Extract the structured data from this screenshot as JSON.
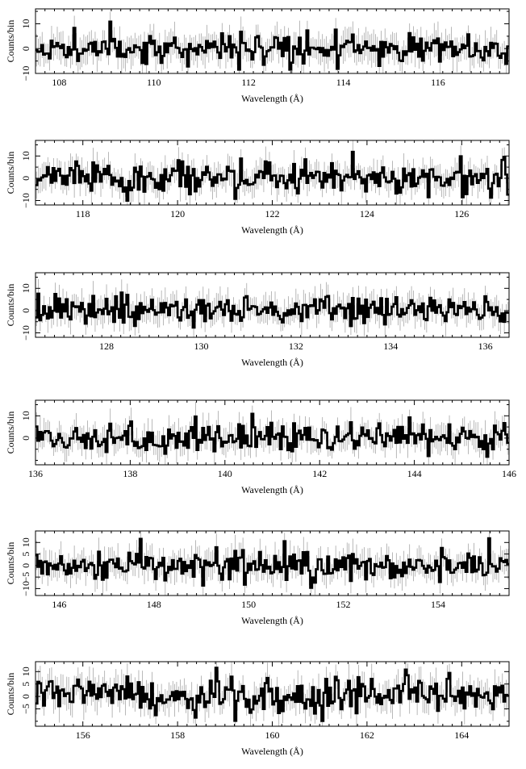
{
  "chart_data": [
    {
      "type": "line",
      "xlabel": "Wavelength (Å)",
      "ylabel": "Counts/bin",
      "xlim": [
        107.5,
        117.5
      ],
      "ylim": [
        -10,
        16
      ],
      "xticks": [
        108,
        110,
        112,
        114,
        116
      ],
      "xtick_labels": [
        "108",
        "110",
        "112",
        "114",
        "116"
      ],
      "yticks": [
        -10,
        0,
        10
      ],
      "ytick_labels": [
        "−10",
        "0",
        "10"
      ],
      "grid": false,
      "seed": 11
    },
    {
      "type": "line",
      "xlabel": "Wavelength (Å)",
      "ylabel": "Counts/bin",
      "xlim": [
        117,
        127
      ],
      "ylim": [
        -12,
        17
      ],
      "xticks": [
        118,
        120,
        122,
        124,
        126
      ],
      "xtick_labels": [
        "118",
        "120",
        "122",
        "124",
        "126"
      ],
      "yticks": [
        -10,
        0,
        10
      ],
      "ytick_labels": [
        "−10",
        "0",
        "10"
      ],
      "grid": false,
      "seed": 23
    },
    {
      "type": "line",
      "xlabel": "Wavelength (Å)",
      "ylabel": "Counts/bin",
      "xlim": [
        126.5,
        136.5
      ],
      "ylim": [
        -12,
        17
      ],
      "xticks": [
        128,
        130,
        132,
        134,
        136
      ],
      "xtick_labels": [
        "128",
        "130",
        "132",
        "134",
        "136"
      ],
      "yticks": [
        -10,
        0,
        10
      ],
      "ytick_labels": [
        "−10",
        "0",
        "10"
      ],
      "grid": false,
      "seed": 37
    },
    {
      "type": "line",
      "xlabel": "Wavelength (Å)",
      "ylabel": "Counts/bin",
      "xlim": [
        136,
        146
      ],
      "ylim": [
        -12,
        17
      ],
      "xticks": [
        136,
        138,
        140,
        142,
        144,
        146
      ],
      "xtick_labels": [
        "136",
        "138",
        "140",
        "142",
        "144",
        "146"
      ],
      "yticks": [
        0,
        10
      ],
      "ytick_labels": [
        "0",
        "10"
      ],
      "grid": false,
      "seed": 41
    },
    {
      "type": "line",
      "xlabel": "Wavelength (Å)",
      "ylabel": "Counts/bin",
      "xlim": [
        145.5,
        155.5
      ],
      "ylim": [
        -13,
        15
      ],
      "xticks": [
        146,
        148,
        150,
        152,
        154
      ],
      "xtick_labels": [
        "146",
        "148",
        "150",
        "152",
        "154"
      ],
      "yticks": [
        -10,
        -5,
        0,
        5,
        10
      ],
      "ytick_labels": [
        "−10",
        "−5",
        "0",
        "5",
        "10"
      ],
      "grid": false,
      "seed": 53
    },
    {
      "type": "line",
      "xlabel": "Wavelength (Å)",
      "ylabel": "Counts/bin",
      "xlim": [
        155,
        165
      ],
      "ylim": [
        -12,
        14
      ],
      "xticks": [
        156,
        158,
        160,
        162,
        164
      ],
      "xtick_labels": [
        "156",
        "158",
        "160",
        "162",
        "164"
      ],
      "yticks": [
        -5,
        0,
        5,
        10
      ],
      "ytick_labels": [
        "−5",
        "0",
        "5",
        "10"
      ],
      "grid": false,
      "seed": 67
    }
  ]
}
